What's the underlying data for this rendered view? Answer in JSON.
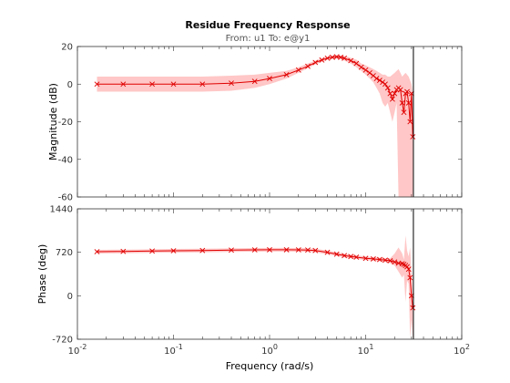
{
  "figure": {
    "title": "Residue Frequency Response",
    "subtitle": "From: u1  To: e@y1",
    "xlabel": "Frequency  (rad/s)"
  },
  "chart_data": [
    {
      "name": "magnitude",
      "type": "line",
      "ylabel": "Magnitude (dB)",
      "xscale": "log",
      "xlim": [
        0.01,
        100
      ],
      "ylim": [
        -60,
        20
      ],
      "yticks": [
        20,
        0,
        -20,
        -40,
        -60
      ],
      "xticks": [
        "10^-2",
        "10^-1",
        "10^0",
        "10^1",
        "10^2"
      ],
      "nyquist_frequency": 31.4,
      "series": [
        {
          "x": [
            0.016,
            0.03,
            0.06,
            0.1,
            0.2,
            0.4,
            0.7,
            1.0,
            1.5,
            2.0,
            2.5,
            3.0,
            3.5,
            4.0,
            4.5,
            5.0,
            5.5,
            6.0,
            7.0,
            8.0,
            9.0,
            10.0,
            11.0,
            12.0,
            13.0,
            14.0,
            15.0,
            16.0,
            17.0,
            18.0,
            19.0,
            20.0,
            21.0,
            22.0,
            23.0,
            24.0,
            25.0,
            26.0,
            27.0,
            28.0,
            29.0,
            30.0,
            31.0
          ],
          "y": [
            0,
            0,
            0,
            0,
            0,
            0.5,
            1.5,
            3,
            5,
            7.5,
            9.5,
            11.5,
            12.8,
            13.8,
            14.3,
            14.5,
            14.3,
            13.8,
            12.5,
            11,
            9,
            7.5,
            6,
            4.5,
            3,
            2,
            1,
            0,
            -2,
            -5,
            -8,
            -5,
            -3,
            -2,
            -3,
            -10,
            -15,
            -5,
            -4,
            -10,
            -20,
            -5,
            -28
          ],
          "band_upper": [
            4,
            4,
            4,
            4,
            4,
            4.5,
            5,
            6,
            7,
            9,
            11,
            12.5,
            13.8,
            14.5,
            15,
            15.5,
            15.2,
            15,
            14,
            13,
            11,
            10,
            9,
            8,
            7,
            6,
            5,
            5,
            4,
            4,
            5,
            6,
            7,
            8,
            6,
            4,
            5,
            6,
            5,
            4,
            2,
            0,
            -5
          ],
          "band_lower": [
            -4,
            -4,
            -4,
            -4,
            -4,
            -3.5,
            -2,
            0,
            3,
            6,
            8.5,
            10.5,
            11.8,
            13,
            13.5,
            13.5,
            13.3,
            12.5,
            11,
            9,
            7,
            5,
            3,
            1,
            -2,
            -5,
            -10,
            -12,
            -10,
            -15,
            -20,
            -15,
            -10,
            -60,
            -60,
            -60,
            -60,
            -60,
            -60,
            -60,
            -60,
            -60,
            -60
          ]
        }
      ]
    },
    {
      "name": "phase",
      "type": "line",
      "ylabel": "Phase (deg)",
      "xscale": "log",
      "xlim": [
        0.01,
        100
      ],
      "ylim": [
        -720,
        1440
      ],
      "yticks": [
        1440,
        720,
        0,
        -720
      ],
      "xticks": [
        "10^-2",
        "10^-1",
        "10^0",
        "10^1",
        "10^2"
      ],
      "nyquist_frequency": 31.4,
      "series": [
        {
          "x": [
            0.016,
            0.03,
            0.06,
            0.1,
            0.2,
            0.4,
            0.7,
            1.0,
            1.5,
            2.0,
            2.5,
            3.0,
            4.0,
            5.0,
            6.0,
            7.0,
            8.0,
            10.0,
            12.0,
            14.0,
            16.0,
            18.0,
            20.0,
            22.0,
            24.0,
            25.0,
            26.0,
            27.0,
            28.0,
            29.0,
            30.0,
            31.0
          ],
          "y": [
            730,
            735,
            740,
            745,
            750,
            755,
            760,
            762,
            762,
            760,
            758,
            750,
            720,
            690,
            665,
            650,
            640,
            620,
            610,
            600,
            590,
            580,
            560,
            540,
            530,
            520,
            500,
            480,
            440,
            300,
            0,
            -200
          ],
          "band_upper": [
            760,
            765,
            770,
            775,
            780,
            785,
            790,
            792,
            792,
            790,
            788,
            780,
            750,
            720,
            695,
            680,
            670,
            650,
            640,
            630,
            620,
            620,
            700,
            800,
            700,
            600,
            1000,
            750,
            650,
            800,
            400,
            100
          ],
          "band_lower": [
            700,
            705,
            710,
            715,
            720,
            725,
            730,
            732,
            732,
            730,
            728,
            720,
            690,
            660,
            635,
            620,
            610,
            590,
            580,
            570,
            560,
            540,
            500,
            400,
            300,
            350,
            -100,
            250,
            200,
            -700,
            -400,
            -720
          ]
        }
      ]
    }
  ]
}
